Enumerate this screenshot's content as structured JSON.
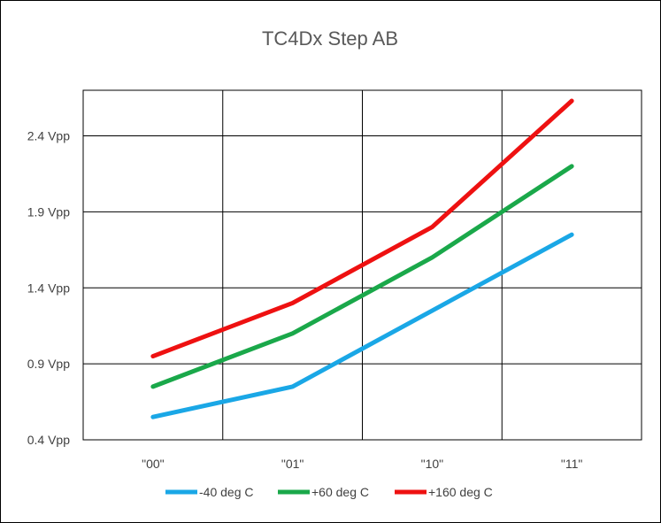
{
  "chart_data": {
    "type": "line",
    "title": "TC4Dx Step AB",
    "categories": [
      "\"00\"",
      "\"01\"",
      "\"10\"",
      "\"11\""
    ],
    "y_tick_labels": [
      "0.4 Vpp",
      "0.9 Vpp",
      "1.4 Vpp",
      "1.9 Vpp",
      "2.4 Vpp"
    ],
    "y_ticks": [
      0.4,
      0.9,
      1.4,
      1.9,
      2.4
    ],
    "ylim": [
      0.4,
      2.7
    ],
    "grid": true,
    "legend_position": "bottom",
    "series": [
      {
        "name": "-40 deg C",
        "color": "#1aa7e6",
        "values": [
          0.55,
          0.75,
          1.25,
          1.75
        ]
      },
      {
        "name": "+60 deg C",
        "color": "#1aa84a",
        "values": [
          0.75,
          1.1,
          1.6,
          2.2
        ]
      },
      {
        "name": "+160 deg C",
        "color": "#ee1111",
        "values": [
          0.95,
          1.3,
          1.8,
          2.63
        ]
      }
    ]
  }
}
